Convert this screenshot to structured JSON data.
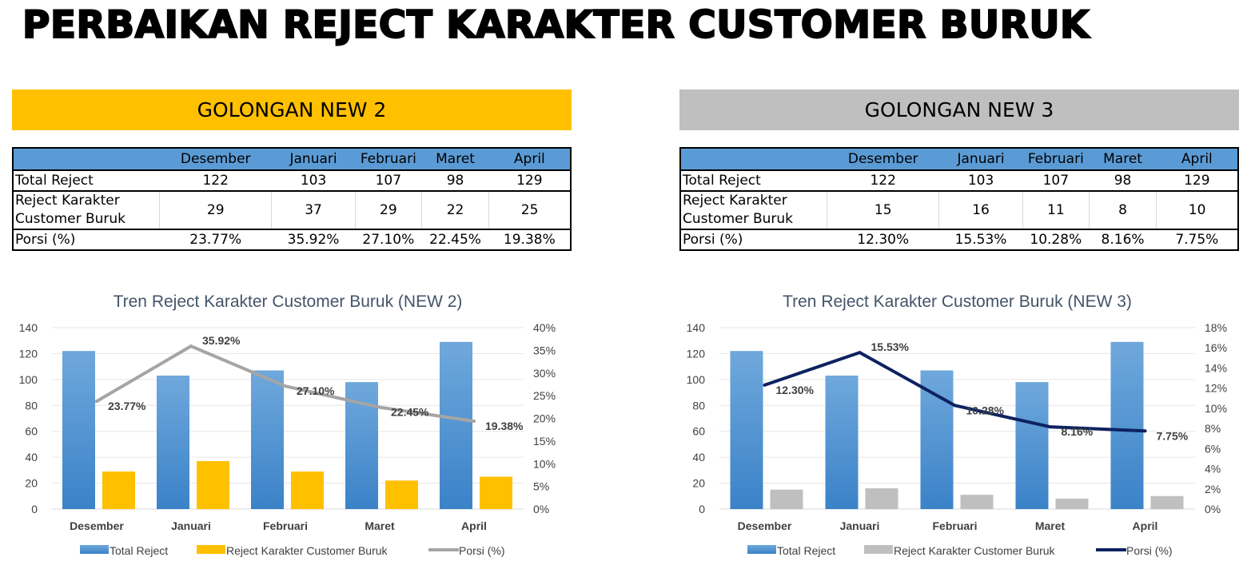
{
  "title": "PERBAIKAN REJECT KARAKTER CUSTOMER BURUK",
  "panels": [
    {
      "banner": "GOLONGAN NEW 2",
      "banner_color": "#ffc000",
      "table": {
        "months": [
          "Desember",
          "Januari",
          "Februari",
          "Maret",
          "April"
        ],
        "rows": [
          {
            "label": "Total Reject",
            "values": [
              "122",
              "103",
              "107",
              "98",
              "129"
            ]
          },
          {
            "label": "Reject Karakter Customer Buruk",
            "values": [
              "29",
              "37",
              "29",
              "22",
              "25"
            ]
          },
          {
            "label": "Porsi (%)",
            "values": [
              "23.77%",
              "35.92%",
              "27.10%",
              "22.45%",
              "19.38%"
            ]
          }
        ]
      }
    },
    {
      "banner": "GOLONGAN NEW 3",
      "banner_color": "#bfbfbf",
      "table": {
        "months": [
          "Desember",
          "Januari",
          "Februari",
          "Maret",
          "April"
        ],
        "rows": [
          {
            "label": "Total Reject",
            "values": [
              "122",
              "103",
              "107",
              "98",
              "129"
            ]
          },
          {
            "label": "Reject Karakter Customer Buruk",
            "values": [
              "15",
              "16",
              "11",
              "8",
              "10"
            ]
          },
          {
            "label": "Porsi (%)",
            "values": [
              "12.30%",
              "15.53%",
              "10.28%",
              "8.16%",
              "7.75%"
            ]
          }
        ]
      }
    }
  ],
  "chart_data": [
    {
      "type": "bar",
      "title": "Tren Reject Karakter Customer Buruk (NEW 2)",
      "categories": [
        "Desember",
        "Januari",
        "Februari",
        "Maret",
        "April"
      ],
      "ylim": [
        0,
        140
      ],
      "yticks": [
        0,
        20,
        40,
        60,
        80,
        100,
        120,
        140
      ],
      "y2lim": [
        0,
        40
      ],
      "y2ticks": [
        "0%",
        "5%",
        "10%",
        "15%",
        "20%",
        "25%",
        "30%",
        "35%",
        "40%"
      ],
      "series": [
        {
          "name": "Total Reject",
          "kind": "bar",
          "axis": "left",
          "color": "#5b9bd5",
          "values": [
            122,
            103,
            107,
            98,
            129
          ]
        },
        {
          "name": "Reject Karakter Customer Buruk",
          "kind": "bar",
          "axis": "left",
          "color": "#ffc000",
          "values": [
            29,
            37,
            29,
            22,
            25
          ]
        },
        {
          "name": "Porsi (%)",
          "kind": "line",
          "axis": "right",
          "color": "#a5a5a5",
          "values": [
            23.77,
            35.92,
            27.1,
            22.45,
            19.38
          ],
          "labels": [
            "23.77%",
            "35.92%",
            "27.10%",
            "22.45%",
            "19.38%"
          ]
        }
      ],
      "legend": "bottom",
      "grid": true
    },
    {
      "type": "bar",
      "title": "Tren Reject Karakter Customer Buruk (NEW 3)",
      "categories": [
        "Desember",
        "Januari",
        "Februari",
        "Maret",
        "April"
      ],
      "ylim": [
        0,
        140
      ],
      "yticks": [
        0,
        20,
        40,
        60,
        80,
        100,
        120,
        140
      ],
      "y2lim": [
        0,
        18
      ],
      "y2ticks": [
        "0%",
        "2%",
        "4%",
        "6%",
        "8%",
        "10%",
        "12%",
        "14%",
        "16%",
        "18%"
      ],
      "series": [
        {
          "name": "Total Reject",
          "kind": "bar",
          "axis": "left",
          "color": "#5b9bd5",
          "values": [
            122,
            103,
            107,
            98,
            129
          ]
        },
        {
          "name": "Reject Karakter Customer Buruk",
          "kind": "bar",
          "axis": "left",
          "color": "#bfbfbf",
          "values": [
            15,
            16,
            11,
            8,
            10
          ]
        },
        {
          "name": "Porsi (%)",
          "kind": "line",
          "axis": "right",
          "color": "#0d2260",
          "values": [
            12.3,
            15.53,
            10.28,
            8.16,
            7.75
          ],
          "labels": [
            "12.30%",
            "15.53%",
            "10.28%",
            "8.16%",
            "7.75%"
          ]
        }
      ],
      "legend": "bottom",
      "grid": true
    }
  ]
}
